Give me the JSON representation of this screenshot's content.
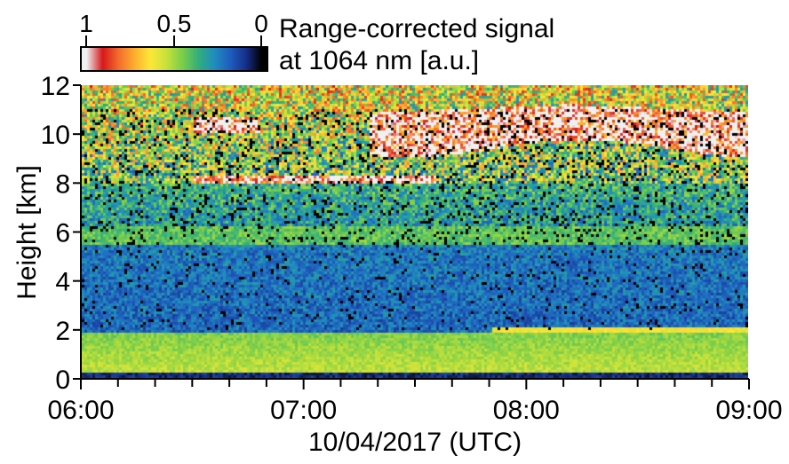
{
  "chart_data": {
    "type": "heatmap",
    "title": "",
    "xlabel": "10/04/2017 (UTC)",
    "ylabel": "Height [km]",
    "x_tick_labels": [
      "06:00",
      "07:00",
      "08:00",
      "09:00"
    ],
    "x_ticks_hours": [
      6,
      7,
      8,
      9
    ],
    "x_minor_step_hours": 0.1667,
    "xlim_hours": [
      6,
      9
    ],
    "y_tick_labels": [
      "0",
      "2",
      "4",
      "6",
      "8",
      "10",
      "12"
    ],
    "y_ticks": [
      0,
      2,
      4,
      6,
      8,
      10,
      12
    ],
    "ylim": [
      0,
      12
    ],
    "colorbar": {
      "title_line1": "Range-corrected signal",
      "title_line2": "at 1064 nm [a.u.]",
      "tick_labels": [
        "1",
        "0.5",
        "0"
      ],
      "tick_values": [
        1,
        0.5,
        0
      ],
      "range": [
        1,
        0
      ],
      "colors": [
        "#f0f0f0",
        "#d7191c",
        "#f46d2d",
        "#fdae2e",
        "#fee838",
        "#c9e23a",
        "#7ccf4a",
        "#34b07a",
        "#1f8fbd",
        "#1f5fbf",
        "#18308c",
        "#000000"
      ]
    },
    "features": [
      {
        "name": "boundary layer",
        "height_km": [
          0,
          1.9
        ],
        "time_hours": [
          6,
          9
        ]
      },
      {
        "name": "aerosol layer top",
        "height_km": [
          1.9,
          2.05
        ],
        "time_hours": [
          7.85,
          9
        ]
      },
      {
        "name": "cirrus cloud layer",
        "height_km": [
          8.0,
          8.3
        ],
        "time_hours": [
          6.5,
          7.6
        ]
      },
      {
        "name": "cirrus cloud",
        "height_km": [
          9.2,
          11.2
        ],
        "time_hours": [
          7.3,
          9
        ]
      },
      {
        "name": "elevated aerosol layer",
        "height_km": [
          5.8,
          6.2
        ],
        "time_hours": [
          6,
          9
        ]
      }
    ]
  }
}
